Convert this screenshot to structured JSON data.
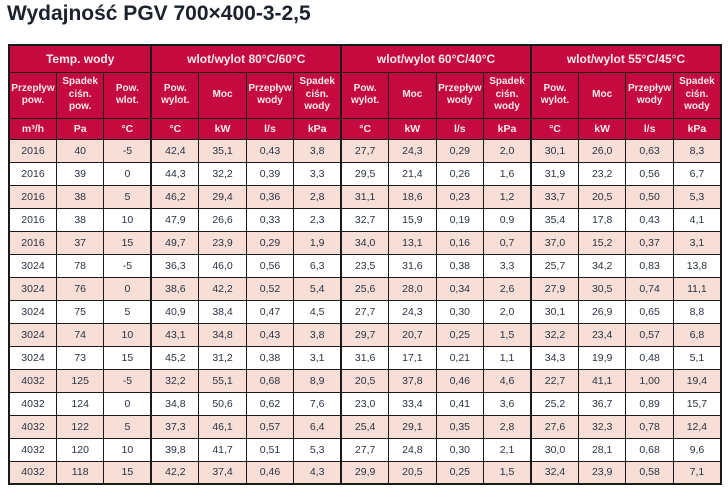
{
  "title": "Wydajność PGV 700×400-3-2,5",
  "colors": {
    "header_background": "#c50a40",
    "header_text": "#fbe9ec",
    "row_pink": "#f7ded6",
    "row_white": "#ffffff",
    "cell_border": "#1a1a1a",
    "data_text": "#2a3340",
    "title_text": "#1c222b"
  },
  "table": {
    "groups": [
      {
        "label": "Temp. wody",
        "cols": 3
      },
      {
        "label": "wlot/wylot 80°C/60°C",
        "cols": 4
      },
      {
        "label": "wlot/wylot 60°C/40°C",
        "cols": 4
      },
      {
        "label": "wlot/wylot 55°C/45°C",
        "cols": 4
      }
    ],
    "columns": [
      {
        "label": "Przepływ\npow.",
        "unit": "m³/h"
      },
      {
        "label": "Spadek\nciśn. pow.",
        "unit": "Pa"
      },
      {
        "label": "Pow.\nwlot.",
        "unit": "°C"
      },
      {
        "label": "Pow.\nwylot.",
        "unit": "°C"
      },
      {
        "label": "Moc",
        "unit": "kW"
      },
      {
        "label": "Przepływ\nwody",
        "unit": "l/s"
      },
      {
        "label": "Spadek\nciśn.\nwody",
        "unit": "kPa"
      },
      {
        "label": "Pow.\nwylot.",
        "unit": "°C"
      },
      {
        "label": "Moc",
        "unit": "kW"
      },
      {
        "label": "Przepływ\nwody",
        "unit": "l/s"
      },
      {
        "label": "Spadek\nciśn.\nwody",
        "unit": "kPa"
      },
      {
        "label": "Pow.\nwylot.",
        "unit": "°C"
      },
      {
        "label": "Moc",
        "unit": "kW"
      },
      {
        "label": "Przepływ\nwody",
        "unit": "l/s"
      },
      {
        "label": "Spadek\nciśn.\nwody",
        "unit": "kPa"
      }
    ],
    "rows": [
      [
        "2016",
        "40",
        "-5",
        "42,4",
        "35,1",
        "0,43",
        "3,8",
        "27,7",
        "24,3",
        "0,29",
        "2,0",
        "30,1",
        "26,0",
        "0,63",
        "8,3"
      ],
      [
        "2016",
        "39",
        "0",
        "44,3",
        "32,2",
        "0,39",
        "3,3",
        "29,5",
        "21,4",
        "0,26",
        "1,6",
        "31,9",
        "23,2",
        "0,56",
        "6,7"
      ],
      [
        "2016",
        "38",
        "5",
        "46,2",
        "29,4",
        "0,36",
        "2,8",
        "31,1",
        "18,6",
        "0,23",
        "1,2",
        "33,7",
        "20,5",
        "0,50",
        "5,3"
      ],
      [
        "2016",
        "38",
        "10",
        "47,9",
        "26,6",
        "0,33",
        "2,3",
        "32,7",
        "15,9",
        "0,19",
        "0,9",
        "35,4",
        "17,8",
        "0,43",
        "4,1"
      ],
      [
        "2016",
        "37",
        "15",
        "49,7",
        "23,9",
        "0,29",
        "1,9",
        "34,0",
        "13,1",
        "0,16",
        "0,7",
        "37,0",
        "15,2",
        "0,37",
        "3,1"
      ],
      [
        "3024",
        "78",
        "-5",
        "36,3",
        "46,0",
        "0,56",
        "6,3",
        "23,5",
        "31,6",
        "0,38",
        "3,3",
        "25,7",
        "34,2",
        "0,83",
        "13,8"
      ],
      [
        "3024",
        "76",
        "0",
        "38,6",
        "42,2",
        "0,52",
        "5,4",
        "25,6",
        "28,0",
        "0,34",
        "2,6",
        "27,9",
        "30,5",
        "0,74",
        "11,1"
      ],
      [
        "3024",
        "75",
        "5",
        "40,9",
        "38,4",
        "0,47",
        "4,5",
        "27,7",
        "24,3",
        "0,30",
        "2,0",
        "30,1",
        "26,9",
        "0,65",
        "8,8"
      ],
      [
        "3024",
        "74",
        "10",
        "43,1",
        "34,8",
        "0,43",
        "3,8",
        "29,7",
        "20,7",
        "0,25",
        "1,5",
        "32,2",
        "23,4",
        "0,57",
        "6,8"
      ],
      [
        "3024",
        "73",
        "15",
        "45,2",
        "31,2",
        "0,38",
        "3,1",
        "31,6",
        "17,1",
        "0,21",
        "1,1",
        "34,3",
        "19,9",
        "0,48",
        "5,1"
      ],
      [
        "4032",
        "125",
        "-5",
        "32,2",
        "55,1",
        "0,68",
        "8,9",
        "20,5",
        "37,8",
        "0,46",
        "4,6",
        "22,7",
        "41,1",
        "1,00",
        "19,4"
      ],
      [
        "4032",
        "124",
        "0",
        "34,8",
        "50,6",
        "0,62",
        "7,6",
        "23,0",
        "33,4",
        "0,41",
        "3,6",
        "25,2",
        "36,7",
        "0,89",
        "15,7"
      ],
      [
        "4032",
        "122",
        "5",
        "37,3",
        "46,1",
        "0,57",
        "6,4",
        "25,4",
        "29,1",
        "0,35",
        "2,8",
        "27,6",
        "32,3",
        "0,78",
        "12,4"
      ],
      [
        "4032",
        "120",
        "10",
        "39,8",
        "41,7",
        "0,51",
        "5,3",
        "27,7",
        "24,8",
        "0,30",
        "2,1",
        "30,0",
        "28,1",
        "0,68",
        "9,6"
      ],
      [
        "4032",
        "118",
        "15",
        "42,2",
        "37,4",
        "0,46",
        "4,3",
        "29,9",
        "20,5",
        "0,25",
        "1,5",
        "32,4",
        "23,9",
        "0,58",
        "7,1"
      ]
    ]
  }
}
